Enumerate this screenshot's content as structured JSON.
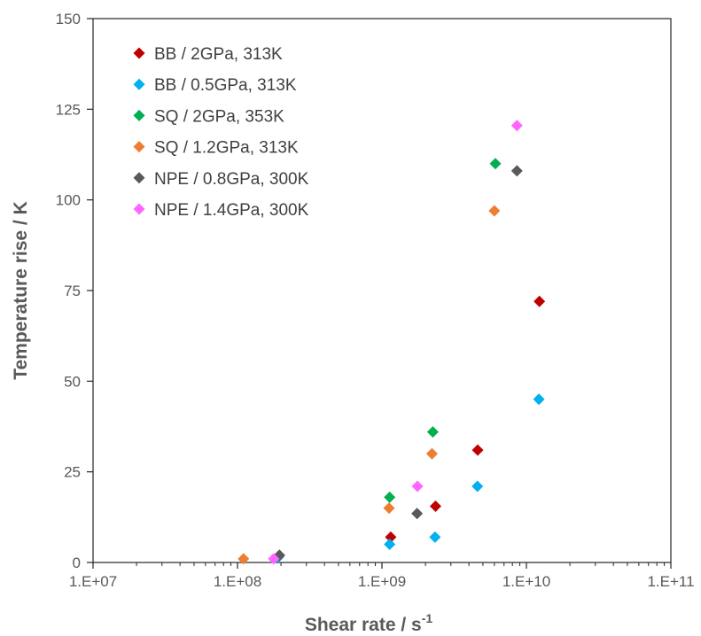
{
  "chart_data": {
    "type": "scatter",
    "title": "",
    "xlabel": "Shear rate / s",
    "xlabel_sup": "-1",
    "ylabel": "Temperature rise / K",
    "x_scale": "log",
    "xlim": [
      10000000,
      100000000000
    ],
    "ylim": [
      0,
      150
    ],
    "x_ticks": [
      10000000,
      100000000,
      1000000000,
      10000000000,
      100000000000
    ],
    "x_tick_labels": [
      "1.E+07",
      "1.E+08",
      "1.E+09",
      "1.E+10",
      "1.E+11"
    ],
    "y_ticks": [
      0,
      25,
      50,
      75,
      100,
      125,
      150
    ],
    "y_tick_labels": [
      "0",
      "25",
      "50",
      "75",
      "100",
      "125",
      "150"
    ],
    "grid": false,
    "legend_position": "top-left",
    "marker": "diamond",
    "series": [
      {
        "name": "BB / 2GPa, 313K",
        "color": "#C00000",
        "x": [
          195000000,
          1150000000,
          2350000000,
          4600000000,
          12300000000
        ],
        "y": [
          2,
          7,
          15.5,
          31,
          72
        ]
      },
      {
        "name": "BB / 0.5GPa, 313K",
        "color": "#00B0F0",
        "x": [
          192000000,
          1130000000,
          2330000000,
          4580000000,
          12200000000
        ],
        "y": [
          1.5,
          5,
          7,
          21,
          45
        ]
      },
      {
        "name": "SQ / 2GPa, 353K",
        "color": "#00B050",
        "x": [
          1130000000,
          2250000000,
          6100000000
        ],
        "y": [
          18,
          36,
          110
        ]
      },
      {
        "name": "SQ / 1.2GPa, 313K",
        "color": "#ED7D31",
        "x": [
          110000000,
          1120000000,
          2220000000,
          6000000000
        ],
        "y": [
          1,
          15,
          30,
          97
        ]
      },
      {
        "name": "NPE / 0.8GPa, 300K",
        "color": "#595959",
        "x": [
          195000000,
          1750000000,
          8600000000
        ],
        "y": [
          2,
          13.5,
          108
        ]
      },
      {
        "name": "NPE / 1.4GPa, 300K",
        "color": "#FF66FF",
        "x": [
          178000000,
          1760000000,
          8600000000
        ],
        "y": [
          1,
          21,
          120.5
        ]
      }
    ]
  }
}
